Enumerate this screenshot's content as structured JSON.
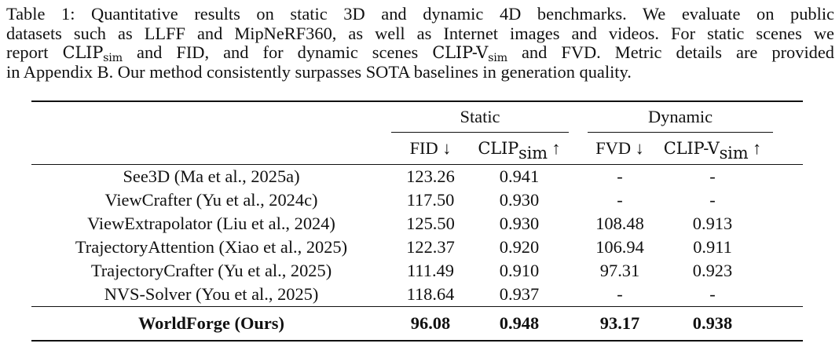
{
  "caption": {
    "lines": [
      "Table 1: Quantitative results on static 3D and dynamic 4D benchmarks. We evaluate on public",
      "datasets such as LLFF and MipNeRF360, as well as Internet images and videos. For static scenes we"
    ],
    "line3_a": "report ",
    "clip": "CLIP",
    "sim": "sim",
    "line3_b": " and FID, and for dynamic scenes ",
    "clipv": "CLIP-V",
    "line3_c": " and FVD. Metric details are provided",
    "line4": "in Appendix B. Our method consistently surpasses SOTA baselines in generation quality."
  },
  "table": {
    "groups": [
      "Static",
      "Dynamic"
    ],
    "columns": {
      "fid": "FID ↓",
      "clip_base": "CLIP",
      "clip_sub": "sim",
      "clip_arrow": " ↑",
      "fvd": "FVD ↓",
      "clipv_base": "CLIP-V",
      "clipv_sub": "sim",
      "clipv_arrow": " ↑"
    },
    "rows": [
      {
        "method": "See3D (Ma et al., 2025a)",
        "fid": "123.26",
        "clip": "0.941",
        "fvd": "-",
        "clipv": "-"
      },
      {
        "method": "ViewCrafter (Yu et al., 2024c)",
        "fid": "117.50",
        "clip": "0.930",
        "fvd": "-",
        "clipv": "-"
      },
      {
        "method": "ViewExtrapolator (Liu et al., 2024)",
        "fid": "125.50",
        "clip": "0.930",
        "fvd": "108.48",
        "clipv": "0.913"
      },
      {
        "method": "TrajectoryAttention (Xiao et al., 2025)",
        "fid": "122.37",
        "clip": "0.920",
        "fvd": "106.94",
        "clipv": "0.911"
      },
      {
        "method": "TrajectoryCrafter (Yu et al., 2025)",
        "fid": "111.49",
        "clip": "0.910",
        "fvd": "97.31",
        "clipv": "0.923"
      },
      {
        "method": "NVS-Solver (You et al., 2025)",
        "fid": "118.64",
        "clip": "0.937",
        "fvd": "-",
        "clipv": "-"
      }
    ],
    "ours": {
      "method": "WorldForge (Ours)",
      "fid": "96.08",
      "clip": "0.948",
      "fvd": "93.17",
      "clipv": "0.938"
    }
  }
}
